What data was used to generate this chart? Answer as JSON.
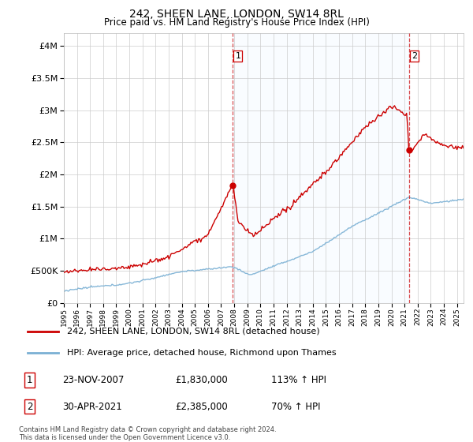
{
  "title": "242, SHEEN LANE, LONDON, SW14 8RL",
  "subtitle": "Price paid vs. HM Land Registry's House Price Index (HPI)",
  "ytick_values": [
    0,
    500000,
    1000000,
    1500000,
    2000000,
    2500000,
    3000000,
    3500000,
    4000000
  ],
  "ylim": [
    0,
    4200000
  ],
  "xlim_start": 1995.0,
  "xlim_end": 2025.5,
  "sale1_x": 2007.9,
  "sale1_y": 1830000,
  "sale2_x": 2021.33,
  "sale2_y": 2385000,
  "red_line_color": "#cc0000",
  "blue_line_color": "#7ab0d4",
  "dashed_line_color": "#cc0000",
  "shade_color": "#ddeeff",
  "legend_label1": "242, SHEEN LANE, LONDON, SW14 8RL (detached house)",
  "legend_label2": "HPI: Average price, detached house, Richmond upon Thames",
  "table_row1": [
    "1",
    "23-NOV-2007",
    "£1,830,000",
    "113% ↑ HPI"
  ],
  "table_row2": [
    "2",
    "30-APR-2021",
    "£2,385,000",
    "70% ↑ HPI"
  ],
  "footnote": "Contains HM Land Registry data © Crown copyright and database right 2024.\nThis data is licensed under the Open Government Licence v3.0.",
  "bg_color": "#ffffff",
  "grid_color": "#cccccc"
}
